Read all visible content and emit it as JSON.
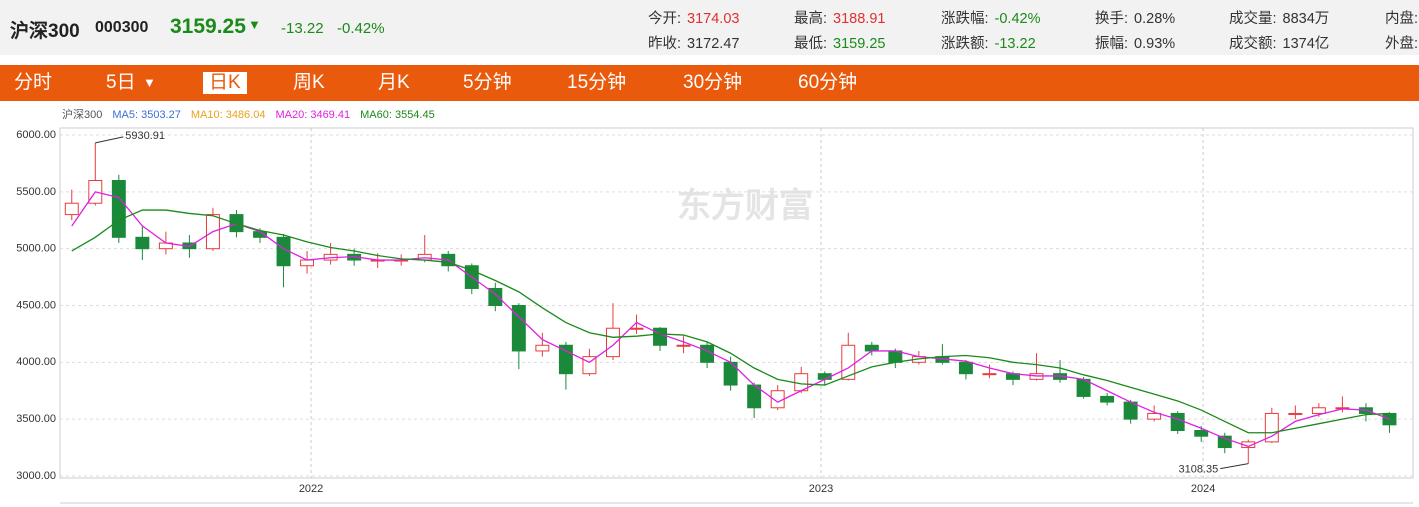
{
  "header": {
    "name": "沪深300",
    "code": "000300",
    "price": "3159.25",
    "change": "-13.22",
    "change_pct": "-0.42%",
    "stats": [
      [
        {
          "label": "今开:",
          "value": "3174.03"
        },
        {
          "label": "最高:",
          "value": "3188.91"
        },
        {
          "label": "涨跌幅:",
          "value": "-0.42%"
        },
        {
          "label": "换手:",
          "value": "0.28%"
        },
        {
          "label": "成交量:",
          "value": "8834万"
        },
        {
          "label": "内盘:",
          "value": ""
        }
      ],
      [
        {
          "label": "昨收:",
          "value": "3172.47"
        },
        {
          "label": "最低:",
          "value": "3159.25"
        },
        {
          "label": "涨跌额:",
          "value": "-13.22"
        },
        {
          "label": "振幅:",
          "value": "0.93%"
        },
        {
          "label": "成交额:",
          "value": "1374亿"
        },
        {
          "label": "外盘:",
          "value": ""
        }
      ]
    ]
  },
  "tabs": [
    "分时",
    "5日",
    "日K",
    "周K",
    "月K",
    "5分钟",
    "15分钟",
    "30分钟",
    "60分钟"
  ],
  "chart_data": {
    "type": "candlestick",
    "watermark": "东方财富",
    "legend": [
      {
        "text": "沪深300",
        "color": "#555555"
      },
      {
        "text": "MA5: 3503.27",
        "color": "#3b6fd4"
      },
      {
        "text": "MA10: 3486.04",
        "color": "#e8a317"
      },
      {
        "text": "MA20: 3469.41",
        "color": "#e020e0"
      },
      {
        "text": "MA60: 3554.45",
        "color": "#1a8a1a"
      }
    ],
    "up_color": "#e83c3c",
    "down_color": "#1a8a3a",
    "candles": [
      [
        5300,
        5520,
        5250,
        5400
      ],
      [
        5400,
        5930.91,
        5380,
        5600
      ],
      [
        5600,
        5650,
        5050,
        5100
      ],
      [
        5100,
        5200,
        4900,
        5000
      ],
      [
        5000,
        5150,
        4950,
        5050
      ],
      [
        5050,
        5120,
        4920,
        5000
      ],
      [
        5000,
        5360,
        4980,
        5300
      ],
      [
        5300,
        5340,
        5100,
        5150
      ],
      [
        5150,
        5180,
        5050,
        5100
      ],
      [
        5100,
        5130,
        4660,
        4850
      ],
      [
        4850,
        4980,
        4780,
        4900
      ],
      [
        4900,
        5050,
        4860,
        4950
      ],
      [
        4950,
        5000,
        4850,
        4900
      ],
      [
        4900,
        4960,
        4830,
        4900
      ],
      [
        4900,
        4950,
        4850,
        4900
      ],
      [
        4900,
        5120,
        4880,
        4950
      ],
      [
        4950,
        4980,
        4800,
        4850
      ],
      [
        4850,
        4870,
        4600,
        4650
      ],
      [
        4650,
        4700,
        4450,
        4500
      ],
      [
        4500,
        4520,
        3940,
        4100
      ],
      [
        4100,
        4260,
        4050,
        4150
      ],
      [
        4150,
        4180,
        3760,
        3900
      ],
      [
        3900,
        4120,
        3880,
        4050
      ],
      [
        4050,
        4520,
        4020,
        4300
      ],
      [
        4300,
        4420,
        4250,
        4300
      ],
      [
        4300,
        4310,
        4100,
        4150
      ],
      [
        4150,
        4230,
        4080,
        4150
      ],
      [
        4150,
        4180,
        3950,
        4000
      ],
      [
        4000,
        4050,
        3750,
        3800
      ],
      [
        3800,
        3820,
        3510,
        3600
      ],
      [
        3600,
        3800,
        3580,
        3750
      ],
      [
        3750,
        3960,
        3730,
        3900
      ],
      [
        3900,
        3920,
        3800,
        3850
      ],
      [
        3850,
        4260,
        3840,
        4150
      ],
      [
        4150,
        4180,
        4060,
        4100
      ],
      [
        4100,
        4120,
        3950,
        4000
      ],
      [
        4000,
        4100,
        3980,
        4050
      ],
      [
        4050,
        4160,
        3980,
        4000
      ],
      [
        4000,
        4020,
        3850,
        3900
      ],
      [
        3900,
        3980,
        3860,
        3900
      ],
      [
        3900,
        3920,
        3800,
        3850
      ],
      [
        3850,
        4080,
        3840,
        3900
      ],
      [
        3900,
        4020,
        3820,
        3850
      ],
      [
        3850,
        3870,
        3680,
        3700
      ],
      [
        3700,
        3730,
        3620,
        3650
      ],
      [
        3650,
        3670,
        3460,
        3500
      ],
      [
        3500,
        3620,
        3480,
        3550
      ],
      [
        3550,
        3570,
        3370,
        3400
      ],
      [
        3400,
        3440,
        3300,
        3350
      ],
      [
        3350,
        3380,
        3200,
        3250
      ],
      [
        3250,
        3320,
        3108.35,
        3300
      ],
      [
        3300,
        3600,
        3290,
        3550
      ],
      [
        3550,
        3620,
        3500,
        3550
      ],
      [
        3550,
        3640,
        3520,
        3600
      ],
      [
        3600,
        3700,
        3560,
        3600
      ],
      [
        3600,
        3640,
        3480,
        3550
      ],
      [
        3550,
        3560,
        3380,
        3450
      ]
    ],
    "series": [
      {
        "color": "#e020e0",
        "values": [
          5200,
          5500,
          5450,
          5200,
          5050,
          5020,
          5150,
          5220,
          5150,
          5000,
          4900,
          4920,
          4930,
          4900,
          4900,
          4920,
          4900,
          4750,
          4600,
          4400,
          4200,
          4100,
          4000,
          4150,
          4350,
          4250,
          4180,
          4100,
          4000,
          3800,
          3650,
          3750,
          3850,
          3950,
          4100,
          4100,
          4050,
          4030,
          4010,
          3950,
          3900,
          3880,
          3880,
          3850,
          3750,
          3650,
          3560,
          3500,
          3420,
          3330,
          3260,
          3350,
          3480,
          3540,
          3590,
          3580,
          3500
        ]
      },
      {
        "color": "#1a8a1a",
        "values": [
          4980,
          5100,
          5250,
          5340,
          5340,
          5310,
          5290,
          5220,
          5160,
          5120,
          5060,
          5010,
          4980,
          4940,
          4910,
          4900,
          4880,
          4810,
          4720,
          4620,
          4480,
          4350,
          4260,
          4220,
          4230,
          4250,
          4240,
          4180,
          4080,
          3950,
          3850,
          3810,
          3800,
          3880,
          3960,
          4000,
          4030,
          4050,
          4060,
          4040,
          4000,
          3980,
          3950,
          3890,
          3840,
          3780,
          3720,
          3660,
          3580,
          3480,
          3380,
          3380,
          3420,
          3460,
          3500,
          3540,
          3550
        ]
      }
    ],
    "ylim": [
      2982,
      6062
    ],
    "yticks": [
      {
        "value": 3000,
        "label": "3000.00"
      },
      {
        "value": 3500,
        "label": "3500.00"
      },
      {
        "value": 4000,
        "label": "4000.00"
      },
      {
        "value": 4500,
        "label": "4500.00"
      },
      {
        "value": 5000,
        "label": "5000.00"
      },
      {
        "value": 5500,
        "label": "5500.00"
      },
      {
        "value": 6000,
        "label": "6000.00"
      }
    ],
    "xlim": [
      -0.5,
      57
    ],
    "xticks": [
      {
        "value": 10.17,
        "label": "2022"
      },
      {
        "value": 31.84,
        "label": "2023"
      },
      {
        "value": 48.08,
        "label": "2024"
      }
    ],
    "grid": true
  }
}
